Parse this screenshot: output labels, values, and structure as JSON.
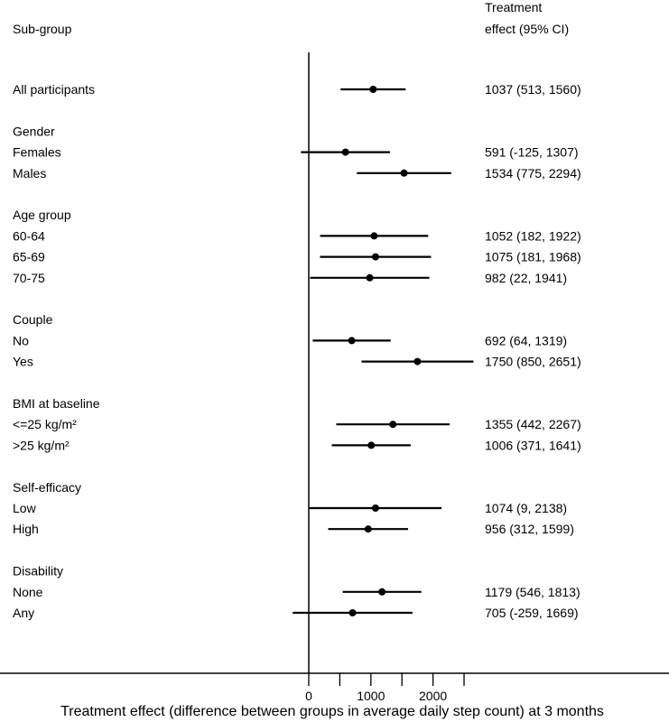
{
  "header": {
    "subgroup_label": "Sub-group",
    "effect_label_line1": "Treatment",
    "effect_label_line2": "effect (95% CI)"
  },
  "chart_data": {
    "type": "forest",
    "xlabel": "Treatment effect (difference between groups in average daily step count) at 3 months",
    "x_ticks": [
      0,
      1000,
      2000
    ],
    "x_tick_labels": [
      "0",
      "1000",
      "2000"
    ],
    "x_minor_ticks": [
      500,
      1500,
      2500
    ],
    "xlim": [
      -750,
      2550
    ],
    "reference_line": 0,
    "rows": [
      {
        "kind": "item",
        "label": "All participants",
        "estimate": 1037,
        "lower": 513,
        "upper": 1560,
        "text": "1037 (513, 1560)"
      },
      {
        "kind": "heading",
        "label": "Gender"
      },
      {
        "kind": "item",
        "label": "Females",
        "estimate": 591,
        "lower": -125,
        "upper": 1307,
        "text": "591 (-125, 1307)"
      },
      {
        "kind": "item",
        "label": "Males",
        "estimate": 1534,
        "lower": 775,
        "upper": 2294,
        "text": "1534 (775, 2294)"
      },
      {
        "kind": "heading",
        "label": "Age group"
      },
      {
        "kind": "item",
        "label": "60-64",
        "estimate": 1052,
        "lower": 182,
        "upper": 1922,
        "text": "1052 (182, 1922)"
      },
      {
        "kind": "item",
        "label": "65-69",
        "estimate": 1075,
        "lower": 181,
        "upper": 1968,
        "text": "1075 (181, 1968)"
      },
      {
        "kind": "item",
        "label": "70-75",
        "estimate": 982,
        "lower": 22,
        "upper": 1941,
        "text": "982 (22, 1941)"
      },
      {
        "kind": "heading",
        "label": "Couple"
      },
      {
        "kind": "item",
        "label": "No",
        "estimate": 692,
        "lower": 64,
        "upper": 1319,
        "text": "692 (64, 1319)"
      },
      {
        "kind": "item",
        "label": "Yes",
        "estimate": 1750,
        "lower": 850,
        "upper": 2651,
        "text": "1750 (850, 2651)"
      },
      {
        "kind": "heading",
        "label": "BMI at baseline"
      },
      {
        "kind": "item",
        "label": "<=25 kg/m²",
        "estimate": 1355,
        "lower": 442,
        "upper": 2267,
        "text": "1355 (442, 2267)"
      },
      {
        "kind": "item",
        "label": ">25 kg/m²",
        "estimate": 1006,
        "lower": 371,
        "upper": 1641,
        "text": "1006 (371, 1641)"
      },
      {
        "kind": "heading",
        "label": "Self-efficacy"
      },
      {
        "kind": "item",
        "label": "Low",
        "estimate": 1074,
        "lower": 9,
        "upper": 2138,
        "text": "1074 (9, 2138)"
      },
      {
        "kind": "item",
        "label": "High",
        "estimate": 956,
        "lower": 312,
        "upper": 1599,
        "text": "956 (312, 1599)"
      },
      {
        "kind": "heading",
        "label": "Disability"
      },
      {
        "kind": "item",
        "label": "None",
        "estimate": 1179,
        "lower": 546,
        "upper": 1813,
        "text": "1179 (546, 1813)"
      },
      {
        "kind": "item",
        "label": "Any",
        "estimate": 705,
        "lower": -259,
        "upper": 1669,
        "text": "705 (-259, 1669)"
      }
    ]
  }
}
